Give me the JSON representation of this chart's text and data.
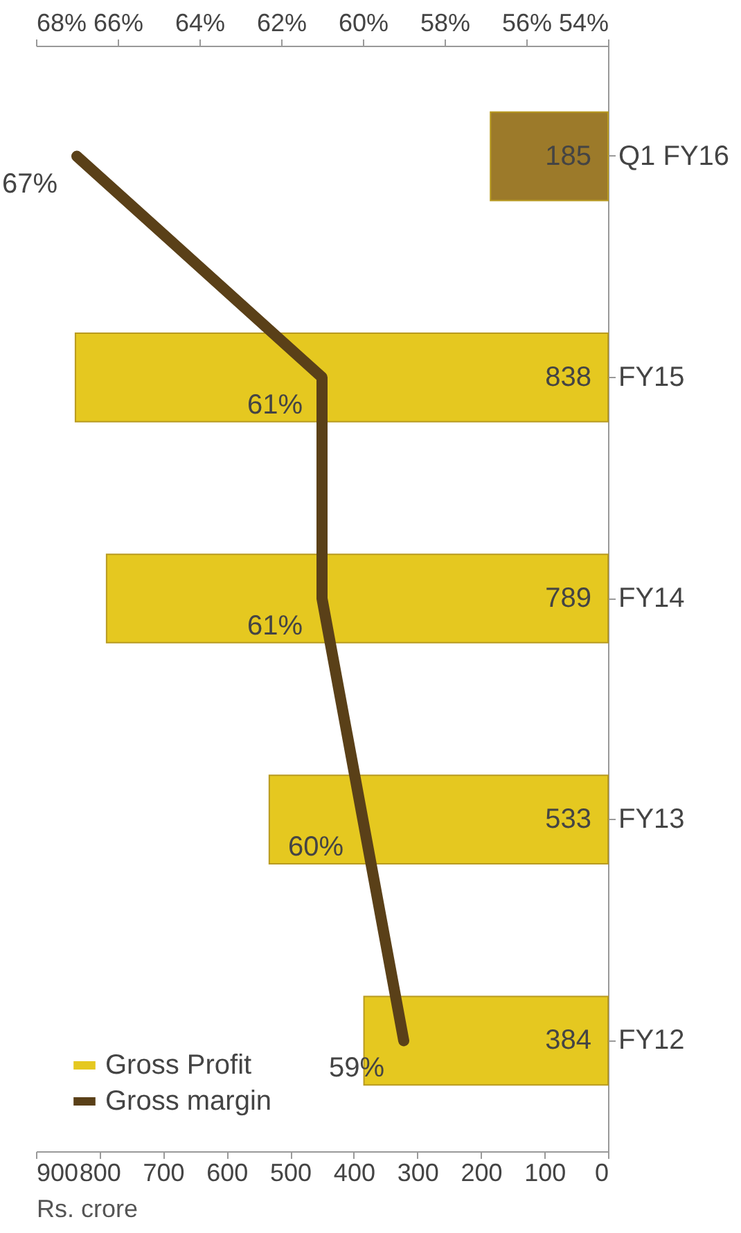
{
  "chart_data": {
    "type": "bar",
    "orientation": "horizontal",
    "xlabel": "Rs. crore",
    "categories": [
      "Q1 FY16",
      "FY15",
      "FY14",
      "FY13",
      "FY12"
    ],
    "series": [
      {
        "name": "Gross Profit",
        "color": "#e5c820",
        "colors": [
          "#9c7a2a",
          "#e5c820",
          "#e5c820",
          "#e5c820",
          "#e5c820"
        ],
        "values": [
          185,
          838,
          789,
          533,
          384
        ],
        "value_labels": [
          "185",
          "838",
          "789",
          "533",
          "384"
        ]
      },
      {
        "name": "Gross margin",
        "type": "line",
        "axis": "x2",
        "color": "#5a4018",
        "values": [
          67,
          61,
          61,
          60,
          59
        ],
        "value_labels": [
          "67%",
          "61%",
          "61%",
          "60%",
          "59%"
        ]
      }
    ],
    "xlim": [
      900,
      0
    ],
    "xticks": [
      900,
      800,
      700,
      600,
      500,
      400,
      300,
      200,
      100,
      0
    ],
    "x2lim": [
      68,
      54
    ],
    "x2ticks": [
      {
        "value": 68,
        "label": "68%"
      },
      {
        "value": 66,
        "label": "66%"
      },
      {
        "value": 64,
        "label": "64%"
      },
      {
        "value": 62,
        "label": "62%"
      },
      {
        "value": 60,
        "label": "60%"
      },
      {
        "value": 58,
        "label": "58%"
      },
      {
        "value": 56,
        "label": "56%"
      },
      {
        "value": 54,
        "label": "54%"
      }
    ],
    "legend": "bottom-left"
  }
}
